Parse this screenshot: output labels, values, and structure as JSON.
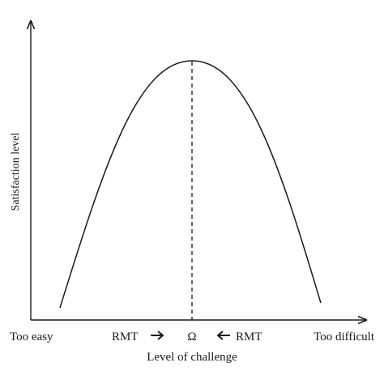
{
  "axes": {
    "y_label": "Satisfaction level",
    "x_label": "Level of challenge",
    "x_left": "Too easy",
    "x_right": "Too difficult"
  },
  "markers": {
    "left_rmt": "RMT",
    "omega": "Ω",
    "right_rmt": "RMT"
  },
  "colors": {
    "ink": "#1a1a1a"
  },
  "icons": {
    "left_arrow": "arrow-right-icon",
    "right_arrow": "arrow-left-icon"
  }
}
